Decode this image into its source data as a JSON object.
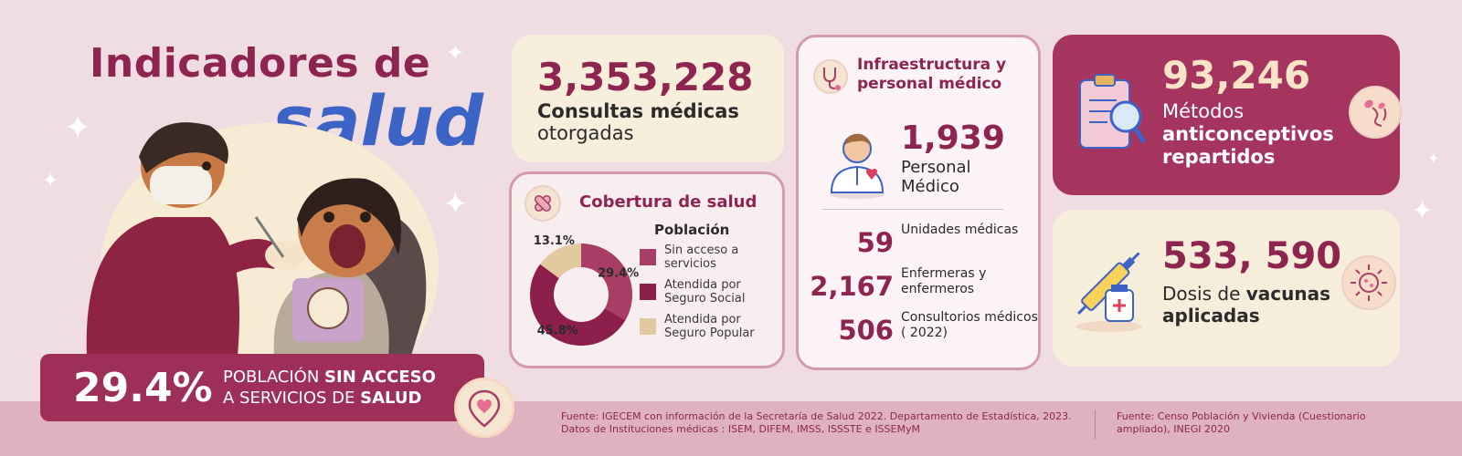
{
  "title": {
    "line1": "Indicadores de",
    "line2": "salud"
  },
  "banner": {
    "percent": "29.4%",
    "text_a": "POBLACIÓN ",
    "text_b": "SIN ACCESO",
    "text_c": "A SERVICIOS DE ",
    "text_d": "SALUD"
  },
  "consultas": {
    "value": "3,353,228",
    "label_bold": "Consultas médicas",
    "label": "otorgadas"
  },
  "cobertura": {
    "title": "Cobertura de salud",
    "legend_title": "Población",
    "legend": [
      {
        "label": "Sin acceso a servicios",
        "color": "#a73e66"
      },
      {
        "label": "Atendida por Seguro Social",
        "color": "#8d1f4c"
      },
      {
        "label": "Atendida por Seguro Popular",
        "color": "#e3c9a0"
      }
    ]
  },
  "chart_data": {
    "type": "pie",
    "series": [
      {
        "name": "Sin acceso a servicios",
        "value": 29.4,
        "label": "29.4%"
      },
      {
        "name": "Atendida por Seguro Social",
        "value": 45.8,
        "label": "45.8%"
      },
      {
        "name": "Atendida por Seguro Popular",
        "value": 13.1,
        "label": "13.1%"
      }
    ],
    "title": "Cobertura de salud",
    "legend_title": "Población",
    "legend_position": "right"
  },
  "infra": {
    "title": "Infraestructura y personal médico",
    "personal_value": "1,939",
    "personal_label": "Personal Médico",
    "rows": [
      {
        "value": "59",
        "label": "Unidades médicas"
      },
      {
        "value": "2,167",
        "label": "Enfermeras y enfermeros"
      },
      {
        "value": "506",
        "label": "Consultorios médicos ( 2022)"
      }
    ]
  },
  "metodos": {
    "value": "93,246",
    "label_a": "Métodos",
    "label_b": "anticonceptivos repartidos"
  },
  "vacunas": {
    "value": "533, 590",
    "label_a": "Dosis de ",
    "label_b": "vacunas",
    "label_c": "aplicadas"
  },
  "sources": {
    "left": "Fuente: IGECEM con información de la Secretaría de Salud 2022. Departamento de Estadística, 2023. Datos de  Instituciones médicas : ISEM, DIFEM, IMSS, ISSSTE e ISSEMyM",
    "right": "Fuente: Censo Población y Vivienda (Cuestionario ampliado), INEGI 2020"
  },
  "colors": {
    "brand": "#8e2450",
    "accent_blue": "#3c63c6",
    "cream": "#f7eedb",
    "background": "#f0dde2"
  }
}
